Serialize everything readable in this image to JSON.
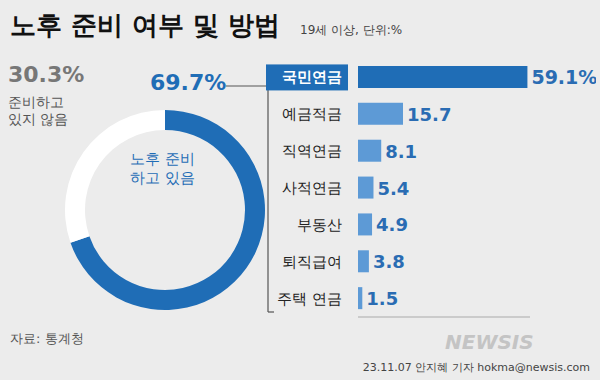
{
  "title": "노후 준비 여부 및 방법",
  "subtitle": "19세 이상, 단위:%",
  "source": "자료: 통계청",
  "credit": "23.11.07 안지혜 기자 hokma@newsis.com",
  "watermark": "NEWSIS",
  "chart_data": [
    {
      "type": "pie",
      "categories": [
        "노후 준비\n하고 있음",
        "준비하고\n있지 않음"
      ],
      "values": [
        69.7,
        30.3
      ],
      "value_labels": [
        "69.7%",
        "30.3%"
      ],
      "colors": [
        "#1f6db6",
        "#ffffff"
      ],
      "data_labels": true
    },
    {
      "type": "bar",
      "orientation": "horizontal",
      "categories": [
        "국민연금",
        "예금적금",
        "직역연금",
        "사적연금",
        "부동산",
        "퇴직급여",
        "주택 연금"
      ],
      "values": [
        59.1,
        15.7,
        8.1,
        5.4,
        4.9,
        3.8,
        1.5
      ],
      "value_labels": [
        "59.1%",
        "15.7",
        "8.1",
        "5.4",
        "4.9",
        "3.8",
        "1.5"
      ],
      "colors": [
        "#1f6db6",
        "#5d9ad6",
        "#5d9ad6",
        "#5d9ad6",
        "#5d9ad6",
        "#5d9ad6",
        "#5d9ad6"
      ],
      "xlim": [
        0,
        60
      ],
      "data_labels": true,
      "tick_labels": "y"
    }
  ]
}
